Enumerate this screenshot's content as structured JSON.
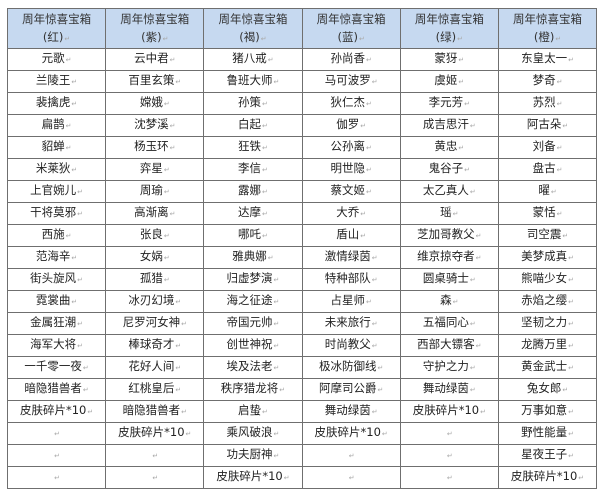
{
  "table": {
    "title_line": "周年惊喜宝箱",
    "columns": [
      {
        "label": "周年惊喜宝箱",
        "color": "(红)",
        "items": [
          "元歌",
          "兰陵王",
          "裴擒虎",
          "扁鹊",
          "貂蝉",
          "米莱狄",
          "上官婉儿",
          "干将莫邪",
          "西施",
          "范海辛",
          "街头旋风",
          "霓裳曲",
          "金属狂潮",
          "海军大将",
          "一千零一夜",
          "暗隐猎兽者",
          "皮肤碎片*10",
          "",
          "",
          ""
        ]
      },
      {
        "label": "周年惊喜宝箱",
        "color": "(紫)",
        "items": [
          "云中君",
          "百里玄策",
          "嫦娥",
          "沈梦溪",
          "杨玉环",
          "弈星",
          "周瑜",
          "高渐离",
          "张良",
          "女娲",
          "孤猎",
          "冰刃幻境",
          "尼罗河女神",
          "棒球奇才",
          "花好人间",
          "红桃皇后",
          "暗隐猎兽者",
          "皮肤碎片*10",
          "",
          ""
        ]
      },
      {
        "label": "周年惊喜宝箱",
        "color": "(褐)",
        "items": [
          "猪八戒",
          "鲁班大师",
          "孙策",
          "白起",
          "狂铁",
          "李信",
          "露娜",
          "达摩",
          "哪吒",
          "雅典娜",
          "归虚梦演",
          "海之征途",
          "帝国元帅",
          "创世神祝",
          "埃及法老",
          "秩序猎龙将",
          "启蛰",
          "乘风破浪",
          "功夫厨神",
          "皮肤碎片*10"
        ]
      },
      {
        "label": "周年惊喜宝箱",
        "color": "(蓝)",
        "items": [
          "孙尚香",
          "马可波罗",
          "狄仁杰",
          "伽罗",
          "公孙离",
          "明世隐",
          "蔡文姬",
          "大乔",
          "盾山",
          "激情绿茵",
          "特种部队",
          "占星师",
          "未来旅行",
          "时尚教父",
          "极冰防御线",
          "阿摩司公爵",
          "舞动绿茵",
          "皮肤碎片*10",
          "",
          ""
        ]
      },
      {
        "label": "周年惊喜宝箱",
        "color": "(绿)",
        "items": [
          "蒙犽",
          "虞姬",
          "李元芳",
          "成吉思汗",
          "黄忠",
          "鬼谷子",
          "太乙真人",
          "瑶",
          "芝加哥教父",
          "维京掠夺者",
          "圆桌骑士",
          "森",
          "五福同心",
          "西部大镖客",
          "守护之力",
          "舞动绿茵",
          "皮肤碎片*10",
          "",
          "",
          ""
        ]
      },
      {
        "label": "周年惊喜宝箱",
        "color": "(橙)",
        "items": [
          "东皇太一",
          "梦奇",
          "苏烈",
          "阿古朵",
          "刘备",
          "盘古",
          "曜",
          "蒙恬",
          "司空震",
          "美梦成真",
          "熊喵少女",
          "赤焰之缨",
          "坚韧之力",
          "龙腾万里",
          "黄金武士",
          "兔女郎",
          "万事如意",
          "野性能量",
          "星夜王子",
          "皮肤碎片*10"
        ]
      }
    ],
    "header_bg": "#c6d9f0",
    "border_color": "#6f6f6f"
  }
}
